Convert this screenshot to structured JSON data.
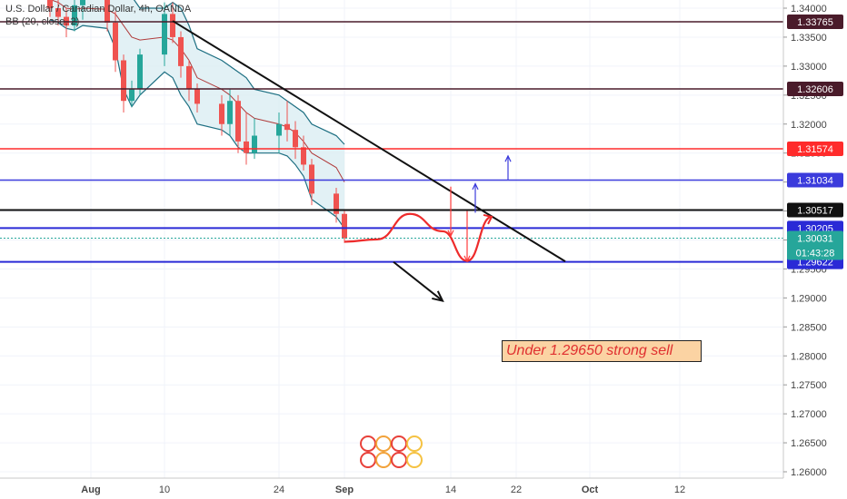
{
  "header": {
    "symbol_line": "U.S. Dollar / Canadian Dollar, 4h, OANDA",
    "indicator_line": "BB (20, close, 2)"
  },
  "chart_data": {
    "type": "candlestick",
    "title": "U.S. Dollar / Canadian Dollar, 4h, OANDA",
    "indicator": "BB (20, close, 2)",
    "ylim": [
      1.26,
      1.34
    ],
    "y_ticks": [
      "1.34000",
      "1.33500",
      "1.33000",
      "1.32500",
      "1.32000",
      "1.31500",
      "1.31000",
      "1.30500",
      "1.30000",
      "1.29500",
      "1.29000",
      "1.28500",
      "1.28000",
      "1.27500",
      "1.27000",
      "1.26500",
      "1.26000"
    ],
    "x_ticks": [
      "Aug",
      "10",
      "24",
      "Sep",
      "14",
      "22",
      "Oct",
      "12"
    ],
    "levels": [
      {
        "value": 1.33765,
        "label": "1.33765",
        "color": "#4a1b2a"
      },
      {
        "value": 1.32606,
        "label": "1.32606",
        "color": "#4a1b2a"
      },
      {
        "value": 1.31574,
        "label": "1.31574",
        "color": "#ff2b2b"
      },
      {
        "value": 1.31034,
        "label": "1.31034",
        "color": "#3b3bdc"
      },
      {
        "value": 1.30517,
        "label": "1.30517",
        "color": "#111111"
      },
      {
        "value": 1.30205,
        "label": "1.30205",
        "color": "#2a2ad6"
      },
      {
        "value": 1.29622,
        "label": "1.29622",
        "color": "#2a2ad6"
      }
    ],
    "last_price": {
      "value": 1.30031,
      "label": "1.30031",
      "countdown": "01:43:28",
      "color": "#26a69a"
    },
    "trendline": {
      "start": {
        "date": "2020-08-11",
        "price": 1.3378
      },
      "end": {
        "date": "2020-09-28",
        "price": 1.2963
      }
    },
    "price_path": [
      {
        "date": "2020-07-27",
        "open": 1.3415,
        "high": 1.344,
        "low": 1.3385,
        "close": 1.34
      },
      {
        "date": "2020-07-28",
        "open": 1.34,
        "high": 1.3425,
        "low": 1.337,
        "close": 1.3385
      },
      {
        "date": "2020-07-29",
        "open": 1.3385,
        "high": 1.34,
        "low": 1.335,
        "close": 1.337
      },
      {
        "date": "2020-07-30",
        "open": 1.337,
        "high": 1.342,
        "low": 1.336,
        "close": 1.3405
      },
      {
        "date": "2020-07-31",
        "open": 1.3405,
        "high": 1.344,
        "low": 1.338,
        "close": 1.342
      },
      {
        "date": "2020-08-03",
        "open": 1.342,
        "high": 1.344,
        "low": 1.336,
        "close": 1.3375
      },
      {
        "date": "2020-08-04",
        "open": 1.3375,
        "high": 1.3395,
        "low": 1.329,
        "close": 1.331
      },
      {
        "date": "2020-08-05",
        "open": 1.331,
        "high": 1.332,
        "low": 1.322,
        "close": 1.324
      },
      {
        "date": "2020-08-06",
        "open": 1.324,
        "high": 1.3275,
        "low": 1.323,
        "close": 1.326
      },
      {
        "date": "2020-08-07",
        "open": 1.326,
        "high": 1.333,
        "low": 1.325,
        "close": 1.332
      },
      {
        "date": "2020-08-10",
        "open": 1.332,
        "high": 1.341,
        "low": 1.33,
        "close": 1.339
      },
      {
        "date": "2020-08-11",
        "open": 1.339,
        "high": 1.341,
        "low": 1.334,
        "close": 1.335
      },
      {
        "date": "2020-08-12",
        "open": 1.335,
        "high": 1.336,
        "low": 1.328,
        "close": 1.33
      },
      {
        "date": "2020-08-13",
        "open": 1.33,
        "high": 1.331,
        "low": 1.324,
        "close": 1.326
      },
      {
        "date": "2020-08-14",
        "open": 1.326,
        "high": 1.327,
        "low": 1.322,
        "close": 1.3235
      },
      {
        "date": "2020-08-17",
        "open": 1.3235,
        "high": 1.325,
        "low": 1.318,
        "close": 1.32
      },
      {
        "date": "2020-08-18",
        "open": 1.32,
        "high": 1.326,
        "low": 1.318,
        "close": 1.324
      },
      {
        "date": "2020-08-19",
        "open": 1.324,
        "high": 1.325,
        "low": 1.315,
        "close": 1.317
      },
      {
        "date": "2020-08-20",
        "open": 1.317,
        "high": 1.322,
        "low": 1.313,
        "close": 1.315
      },
      {
        "date": "2020-08-21",
        "open": 1.315,
        "high": 1.321,
        "low": 1.314,
        "close": 1.318
      },
      {
        "date": "2020-08-24",
        "open": 1.318,
        "high": 1.322,
        "low": 1.315,
        "close": 1.32
      },
      {
        "date": "2020-08-25",
        "open": 1.32,
        "high": 1.324,
        "low": 1.317,
        "close": 1.319
      },
      {
        "date": "2020-08-26",
        "open": 1.319,
        "high": 1.3205,
        "low": 1.314,
        "close": 1.316
      },
      {
        "date": "2020-08-27",
        "open": 1.316,
        "high": 1.318,
        "low": 1.312,
        "close": 1.313
      },
      {
        "date": "2020-08-28",
        "open": 1.313,
        "high": 1.314,
        "low": 1.306,
        "close": 1.308
      },
      {
        "date": "2020-08-31",
        "open": 1.308,
        "high": 1.309,
        "low": 1.303,
        "close": 1.3045
      },
      {
        "date": "2020-09-01",
        "open": 1.3045,
        "high": 1.305,
        "low": 1.2995,
        "close": 1.3003
      }
    ],
    "bollinger": {
      "upper": [
        1.345,
        1.344,
        1.343,
        1.3425,
        1.342,
        1.3425,
        1.343,
        1.3432,
        1.342,
        1.34,
        1.34,
        1.341,
        1.34,
        1.337,
        1.333,
        1.331,
        1.33,
        1.329,
        1.328,
        1.326,
        1.325,
        1.324,
        1.323,
        1.322,
        1.32,
        1.318,
        1.3165
      ],
      "middle": [
        1.3415,
        1.341,
        1.34,
        1.3398,
        1.34,
        1.3398,
        1.339,
        1.337,
        1.335,
        1.3345,
        1.335,
        1.3345,
        1.333,
        1.331,
        1.328,
        1.326,
        1.325,
        1.3235,
        1.322,
        1.321,
        1.32,
        1.3195,
        1.3185,
        1.317,
        1.315,
        1.3125,
        1.31
      ],
      "lower": [
        1.338,
        1.3375,
        1.3365,
        1.3362,
        1.337,
        1.3365,
        1.333,
        1.326,
        1.323,
        1.325,
        1.329,
        1.328,
        1.325,
        1.323,
        1.32,
        1.319,
        1.318,
        1.316,
        1.315,
        1.315,
        1.315,
        1.3145,
        1.313,
        1.311,
        1.307,
        1.304,
        1.302
      ]
    },
    "projection_path": [
      {
        "date": "2020-09-01",
        "price": 1.2997
      },
      {
        "date": "2020-09-05",
        "price": 1.3001
      },
      {
        "date": "2020-09-09",
        "price": 1.3045
      },
      {
        "date": "2020-09-13",
        "price": 1.3015
      },
      {
        "date": "2020-09-16",
        "price": 1.2964
      },
      {
        "date": "2020-09-19",
        "price": 1.304
      }
    ],
    "arrows": [
      {
        "color": "#ff3b3b",
        "date": "2020-09-14",
        "from": 1.3092,
        "to": 1.3007
      },
      {
        "color": "#ff3b3b",
        "date": "2020-09-16",
        "from": 1.305,
        "to": 1.2963
      },
      {
        "color": "#3b3bdc",
        "date": "2020-09-17",
        "from": 1.3047,
        "to": 1.3097
      },
      {
        "color": "#3b3bdc",
        "date": "2020-09-21",
        "from": 1.3104,
        "to": 1.3145
      },
      {
        "color": "#111111",
        "date_from": "2020-09-07",
        "price_from": 1.2962,
        "date_to": "2020-09-13",
        "price_to": 1.2895
      }
    ],
    "annotation": "Under 1.29650 strong sell",
    "grid": true,
    "legend": "none"
  }
}
